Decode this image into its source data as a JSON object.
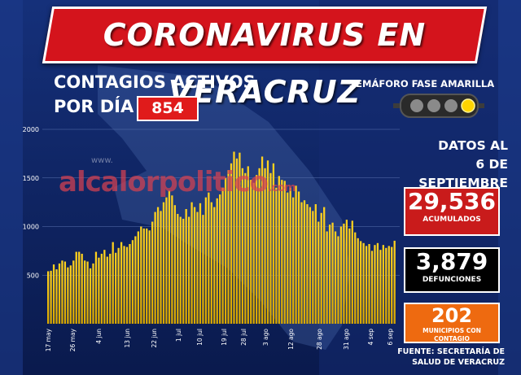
{
  "header": {
    "title": "CORONAVIRUS EN VERACRUZ",
    "subtitle_line1": "CONTAGIOS ACTIVOS",
    "subtitle_line2": "POR DÍA",
    "daily_value": "854"
  },
  "semaforo": {
    "label": "SEMÁFORO FASE AMARILLA",
    "active_light": "yellow"
  },
  "side": {
    "datos_line1": "DATOS AL",
    "datos_line2": "6 DE SEPTIEMBRE",
    "acumulados_value": "29,536",
    "acumulados_label": "ACUMULADOS",
    "defunciones_value": "3,879",
    "defunciones_label": "DEFUNCIONES",
    "municipios_value": "202",
    "municipios_label": "MUNICIPIOS CON CONTAGIO",
    "fuente_line1": "FUENTE: SECRETARÍA DE",
    "fuente_line2": "SALUD DE VERACRUZ"
  },
  "watermark": {
    "main": "alcalorpolitico",
    "small": "www.",
    "sub": ".com"
  },
  "colors": {
    "bar": "#f2c200",
    "banner": "#d4141c",
    "background": "#0c1d52",
    "panel": "#c91b1b",
    "orange": "#ee6a10"
  },
  "chart_data": {
    "type": "bar",
    "title": "CONTAGIOS ACTIVOS POR DÍA",
    "ylim": [
      0,
      2000
    ],
    "yticks": [
      "500",
      "1000",
      "1500",
      "2000"
    ],
    "grid": true,
    "xticks": [
      "17 may",
      "26 may",
      "4 jun",
      "13 jun",
      "22 jun",
      "1 jul",
      "10 jul",
      "19 jul",
      "28 jul",
      "3 ago",
      "12 ago",
      "28 ago",
      "31 ago",
      "4 sep",
      "6 sep"
    ],
    "series": [
      {
        "values": [
          540,
          545,
          610,
          560,
          620,
          650,
          640,
          580,
          600,
          650,
          740,
          740,
          720,
          650,
          640,
          570,
          620,
          740,
          680,
          720,
          760,
          690,
          720,
          840,
          730,
          780,
          840,
          800,
          790,
          820,
          860,
          900,
          950,
          1000,
          980,
          980,
          960,
          1050,
          1150,
          1200,
          1160,
          1250,
          1300,
          1370,
          1320,
          1220,
          1130,
          1100,
          1080,
          1180,
          1100,
          1250,
          1200,
          1150,
          1240,
          1120,
          1300,
          1350,
          1250,
          1200,
          1290,
          1330,
          1400,
          1500,
          1580,
          1650,
          1770,
          1700,
          1760,
          1600,
          1550,
          1620,
          1480,
          1450,
          1530,
          1600,
          1720,
          1600,
          1680,
          1550,
          1650,
          1400,
          1520,
          1480,
          1470,
          1350,
          1400,
          1300,
          1420,
          1360,
          1250,
          1270,
          1230,
          1200,
          1160,
          1230,
          1050,
          1140,
          1200,
          950,
          1020,
          1040,
          950,
          900,
          1000,
          1030,
          1070,
          980,
          1060,
          940,
          880,
          850,
          830,
          800,
          820,
          750,
          810,
          830,
          760,
          810,
          780,
          800,
          790,
          854
        ]
      }
    ]
  }
}
